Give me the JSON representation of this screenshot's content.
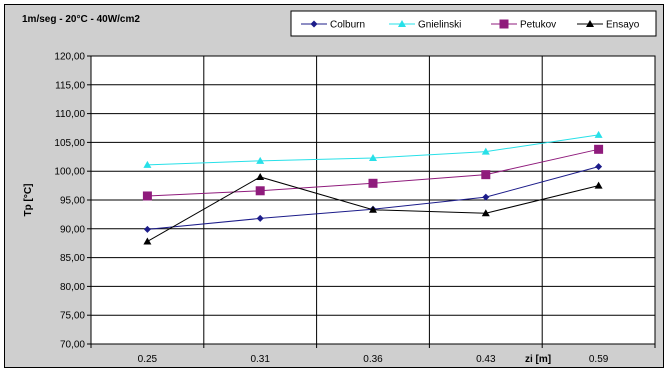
{
  "chart_data": {
    "type": "line",
    "title": "1m/seg - 20°C - 40W/cm2",
    "ylabel": "Tp [°C]",
    "xlabel": "zi [m]",
    "categories": [
      "0.25",
      "0.31",
      "0.36",
      "0.43",
      "0.59"
    ],
    "ylim": [
      70,
      120
    ],
    "yticks": [
      "70,00",
      "75,00",
      "80,00",
      "85,00",
      "90,00",
      "95,00",
      "100,00",
      "105,00",
      "110,00",
      "115,00",
      "120,00"
    ],
    "grid": true,
    "legend_position": "top-right",
    "series": [
      {
        "name": "Colburn",
        "color": "#1c1c8a",
        "marker": "diamond",
        "values": [
          89.9,
          91.8,
          93.4,
          95.5,
          100.8
        ]
      },
      {
        "name": "Gnielinski",
        "color": "#27e0e8",
        "marker": "triangle",
        "values": [
          101.1,
          101.8,
          102.3,
          103.4,
          106.3
        ]
      },
      {
        "name": "Petukov",
        "color": "#8f1b7c",
        "marker": "square",
        "values": [
          95.7,
          96.6,
          97.9,
          99.4,
          103.8
        ]
      },
      {
        "name": "Ensayo",
        "color": "#000000",
        "marker": "triangle",
        "values": [
          87.8,
          99.0,
          93.3,
          92.7,
          97.5
        ]
      }
    ]
  }
}
